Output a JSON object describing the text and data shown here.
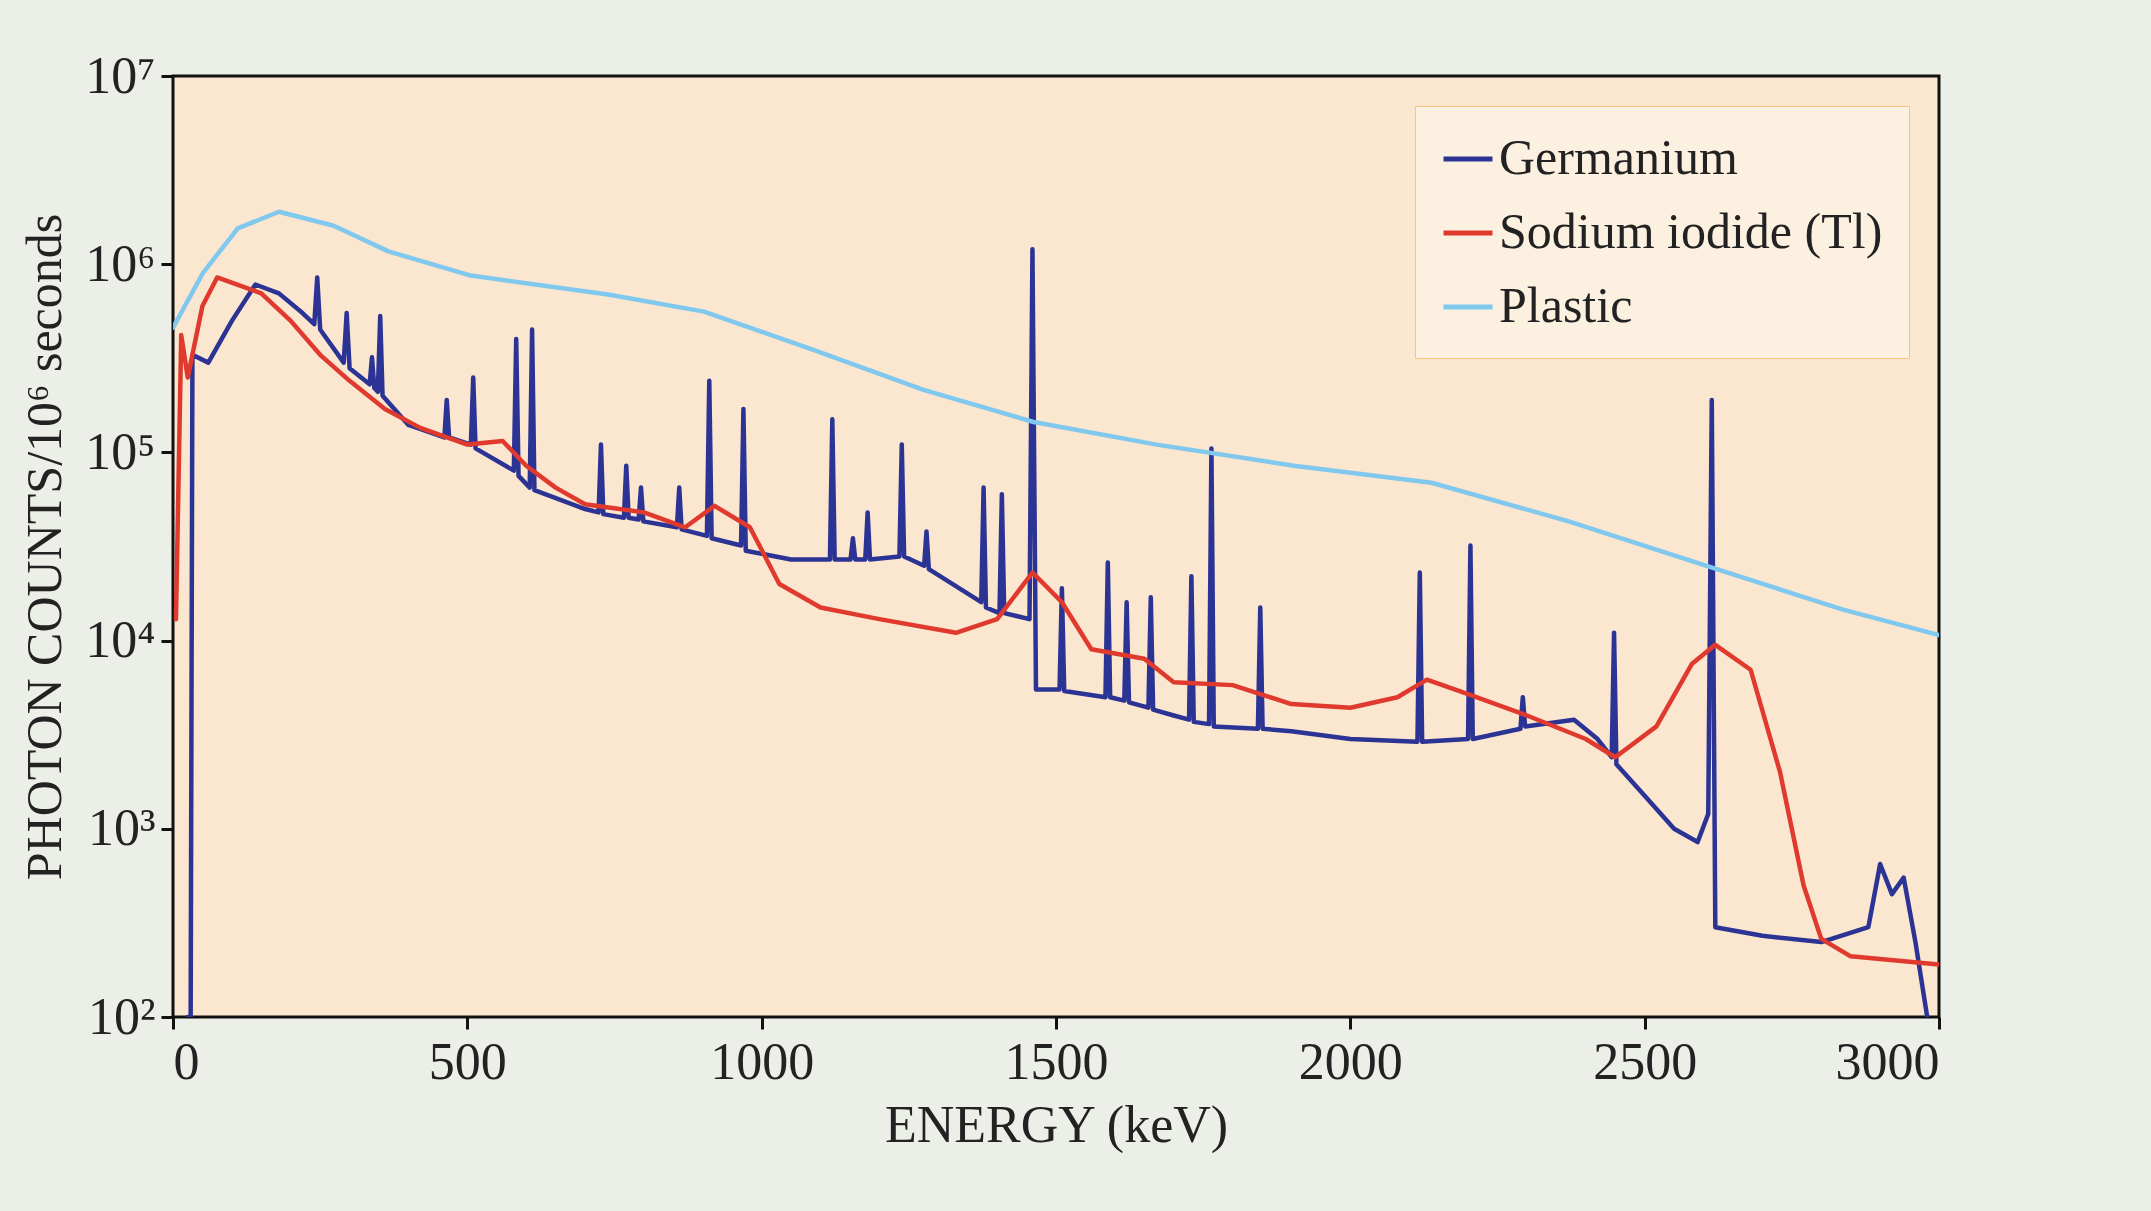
{
  "chart_data": {
    "type": "line",
    "xlabel": "ENERGY (keV)",
    "ylabel": "PHOTON COUNTS/10⁶ seconds",
    "log": "y",
    "legend": "top right",
    "xlim": [
      0,
      3000
    ],
    "xticks": [
      0,
      500,
      1000,
      1500,
      2000,
      2500,
      3000
    ],
    "ylim": [
      100,
      10000000
    ],
    "yticks": [
      {
        "value": 100,
        "label": "10²"
      },
      {
        "value": 1000,
        "label": "10³"
      },
      {
        "value": 10000,
        "label": "10⁴"
      },
      {
        "value": 100000,
        "label": "10⁵"
      },
      {
        "value": 1000000,
        "label": "10⁶"
      },
      {
        "value": 10000000,
        "label": "10⁷"
      }
    ],
    "series": [
      {
        "name": "Germanium",
        "color": "#2b3494",
        "x": [
          25,
          30,
          33,
          60,
          100,
          140,
          180,
          220,
          240,
          245,
          250,
          290,
          295,
          300,
          334,
          338,
          342,
          348,
          352,
          356,
          400,
          461,
          465,
          469,
          506,
          510,
          514,
          579,
          583,
          587,
          606,
          610,
          614,
          700,
          723,
          727,
          731,
          766,
          770,
          774,
          791,
          795,
          799,
          856,
          860,
          864,
          907,
          911,
          915,
          965,
          969,
          973,
          1050,
          1116,
          1120,
          1124,
          1151,
          1155,
          1159,
          1176,
          1180,
          1184,
          1234,
          1238,
          1242,
          1276,
          1280,
          1284,
          1373,
          1377,
          1381,
          1404,
          1408,
          1412,
          1455,
          1460,
          1466,
          1506,
          1510,
          1514,
          1584,
          1588,
          1592,
          1616,
          1620,
          1624,
          1657,
          1661,
          1665,
          1700,
          1726,
          1730,
          1734,
          1760,
          1764,
          1768,
          1843,
          1847,
          1851,
          1900,
          2000,
          2114,
          2118,
          2122,
          2200,
          2204,
          2208,
          2289,
          2293,
          2297,
          2380,
          2420,
          2444,
          2448,
          2452,
          2500,
          2550,
          2590,
          2608,
          2614,
          2620,
          2700,
          2800,
          2880,
          2900,
          2920,
          2940,
          2960,
          2980
        ],
        "values": [
          100,
          100,
          330000,
          300000,
          500000,
          780000,
          700000,
          550000,
          480000,
          850000,
          450000,
          300000,
          550000,
          280000,
          230000,
          320000,
          220000,
          210000,
          530000,
          200000,
          140000,
          120000,
          190000,
          120000,
          110000,
          250000,
          105000,
          80000,
          400000,
          75000,
          65000,
          450000,
          63000,
          50000,
          48000,
          110000,
          47000,
          45000,
          85000,
          45000,
          44000,
          65000,
          43000,
          40000,
          65000,
          39000,
          36000,
          240000,
          35000,
          32000,
          170000,
          30000,
          27000,
          27000,
          150000,
          27000,
          27000,
          35000,
          27000,
          27000,
          48000,
          27000,
          28000,
          110000,
          28000,
          25000,
          38000,
          24000,
          16000,
          65000,
          15000,
          14000,
          60000,
          14000,
          13000,
          1200000,
          5500,
          5500,
          19000,
          5400,
          5000,
          26000,
          5000,
          4800,
          16000,
          4700,
          4400,
          17000,
          4300,
          4000,
          3800,
          22000,
          3700,
          3600,
          105000,
          3500,
          3400,
          15000,
          3400,
          3300,
          3000,
          2900,
          23000,
          2900,
          3000,
          32000,
          3000,
          3400,
          5000,
          3500,
          3800,
          3000,
          2400,
          11000,
          2200,
          1500,
          1000,
          850,
          1200,
          190000,
          300,
          270,
          250,
          300,
          650,
          450,
          550,
          250,
          100
        ]
      },
      {
        "name": "Sodium iodide (Tl)",
        "color": "#e03a2f",
        "x": [
          5,
          14,
          25,
          50,
          75,
          150,
          200,
          250,
          300,
          360,
          420,
          500,
          560,
          600,
          650,
          700,
          800,
          870,
          920,
          980,
          1030,
          1100,
          1200,
          1330,
          1400,
          1460,
          1510,
          1560,
          1650,
          1700,
          1800,
          1900,
          2000,
          2080,
          2130,
          2200,
          2300,
          2400,
          2450,
          2520,
          2580,
          2620,
          2680,
          2730,
          2770,
          2800,
          2850,
          3000
        ],
        "values": [
          13000,
          420000,
          250000,
          600000,
          850000,
          700000,
          500000,
          330000,
          240000,
          170000,
          135000,
          110000,
          115000,
          85000,
          65000,
          53000,
          48000,
          40000,
          52000,
          40000,
          20000,
          15000,
          13000,
          11000,
          13000,
          23000,
          16000,
          9000,
          8000,
          6000,
          5800,
          4600,
          4400,
          5000,
          6200,
          5200,
          4000,
          3000,
          2400,
          3500,
          7500,
          9500,
          7000,
          2000,
          500,
          260,
          210,
          190
        ]
      },
      {
        "name": "Plastic",
        "color": "#80c8ee",
        "x": [
          0,
          51,
          110,
          180,
          273,
          366,
          506,
          739,
          902,
          1089,
          1275,
          1462,
          1671,
          1904,
          2138,
          2371,
          2604,
          2837,
          3000
        ],
        "values": [
          460000,
          900000,
          1550000,
          1900000,
          1600000,
          1170000,
          870000,
          690000,
          560000,
          350000,
          215000,
          145000,
          110000,
          85000,
          69000,
          43000,
          25000,
          14600,
          10700
        ]
      }
    ]
  }
}
